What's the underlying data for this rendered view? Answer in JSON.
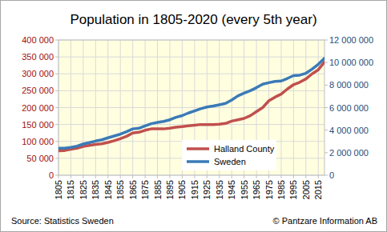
{
  "chart_data": {
    "type": "line",
    "title": "Population in 1805-2020 (every 5th year)",
    "annotations": [
      "Source: Statistics Sweden",
      "© Pantzare Information AB"
    ],
    "x": [
      1805,
      1810,
      1815,
      1820,
      1825,
      1830,
      1835,
      1840,
      1845,
      1850,
      1855,
      1860,
      1865,
      1870,
      1875,
      1880,
      1885,
      1890,
      1895,
      1900,
      1905,
      1910,
      1915,
      1920,
      1925,
      1930,
      1935,
      1940,
      1945,
      1950,
      1955,
      1960,
      1965,
      1970,
      1975,
      1980,
      1985,
      1990,
      1995,
      2000,
      2005,
      2010,
      2015,
      2020
    ],
    "xlim": [
      1805,
      2020
    ],
    "xticks": [
      1805,
      1815,
      1825,
      1835,
      1845,
      1855,
      1865,
      1875,
      1885,
      1895,
      1905,
      1915,
      1925,
      1935,
      1945,
      1955,
      1965,
      1975,
      1985,
      1995,
      2005,
      2015
    ],
    "ylim": [
      0,
      400000
    ],
    "yticks": [
      0,
      {
        "value": 50000,
        "label": "50 000"
      },
      {
        "value": 100000,
        "label": "100 000"
      },
      {
        "value": 150000,
        "label": "150 000"
      },
      {
        "value": 200000,
        "label": "200 000"
      },
      {
        "value": 250000,
        "label": "250 000"
      },
      {
        "value": 300000,
        "label": "300 000"
      },
      {
        "value": 350000,
        "label": "350 000"
      },
      {
        "value": 400000,
        "label": "400 000"
      }
    ],
    "y2lim": [
      0,
      12000000
    ],
    "y2ticks": [
      0,
      {
        "value": 2000000,
        "label": "2 000 000"
      },
      {
        "value": 4000000,
        "label": "4 000 000"
      },
      {
        "value": 6000000,
        "label": "6 000 000"
      },
      {
        "value": 8000000,
        "label": "8 000 000"
      },
      {
        "value": 10000000,
        "label": "10 000 000"
      },
      {
        "value": 12000000,
        "label": "12 000 000"
      }
    ],
    "grid": true,
    "legend": "lower right",
    "series": [
      {
        "name": "Halland County",
        "color": "#c0504d",
        "values": [
          72000,
          73000,
          77000,
          80000,
          85000,
          88000,
          91000,
          93000,
          97000,
          102000,
          108000,
          115000,
          125000,
          127000,
          133000,
          137000,
          137000,
          137000,
          139000,
          142000,
          144000,
          146000,
          148000,
          150000,
          150000,
          150000,
          151000,
          153000,
          160000,
          164000,
          168000,
          176000,
          188000,
          200000,
          220000,
          231000,
          240000,
          255000,
          268000,
          275000,
          285000,
          300000,
          312000,
          335000
        ]
      },
      {
        "name": "Sweden",
        "color": "#3a7ab8",
        "axis": "y2",
        "values": [
          2400000,
          2400000,
          2470000,
          2580000,
          2770000,
          2890000,
          3030000,
          3140000,
          3320000,
          3480000,
          3640000,
          3860000,
          4110000,
          4170000,
          4380000,
          4570000,
          4680000,
          4780000,
          4920000,
          5140000,
          5290000,
          5520000,
          5710000,
          5900000,
          6050000,
          6140000,
          6250000,
          6370000,
          6670000,
          7040000,
          7290000,
          7500000,
          7770000,
          8080000,
          8210000,
          8320000,
          8360000,
          8590000,
          8840000,
          8880000,
          9050000,
          9420000,
          9850000,
          10380000
        ]
      }
    ]
  }
}
